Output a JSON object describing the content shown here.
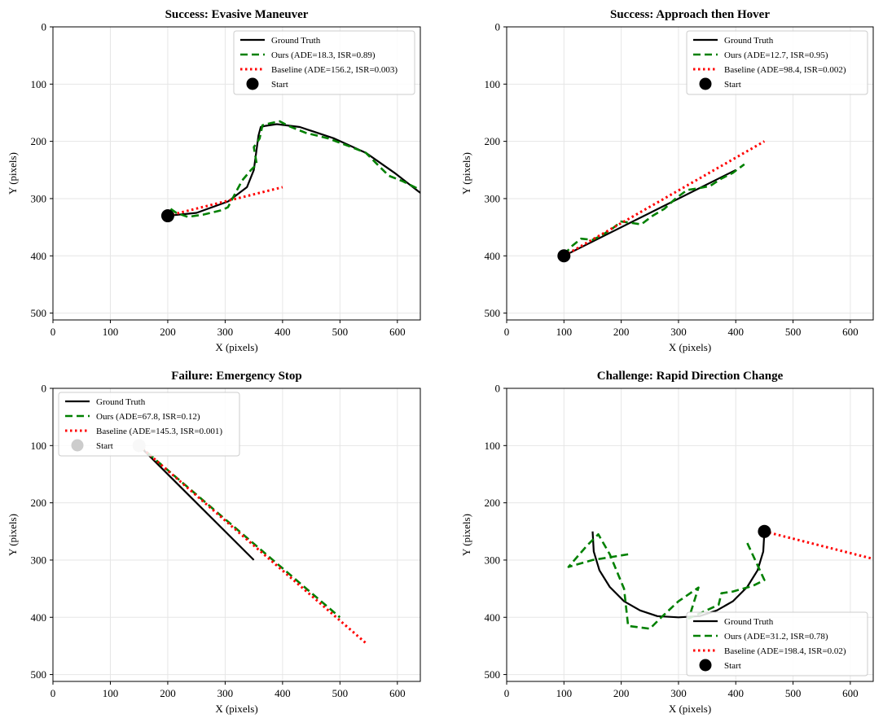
{
  "chart_data": [
    {
      "type": "line",
      "title": "Success: Evasive Maneuver",
      "xlabel": "X (pixels)",
      "ylabel": "Y (pixels)",
      "xlim": [
        0,
        640
      ],
      "ylim": [
        512,
        0
      ],
      "xticks": [
        0,
        100,
        200,
        300,
        400,
        500,
        600
      ],
      "yticks": [
        0,
        100,
        200,
        300,
        400,
        500
      ],
      "legend_position": "top-right",
      "series": [
        {
          "name": "Ground Truth",
          "style": "solid",
          "color": "#000000",
          "x": [
            200,
            250,
            305,
            338,
            350,
            358,
            362,
            370,
            390,
            430,
            490,
            545,
            595,
            640
          ],
          "y": [
            330,
            325,
            305,
            280,
            250,
            190,
            175,
            173,
            170,
            175,
            195,
            220,
            255,
            290
          ]
        },
        {
          "name": "Ours (ADE=18.3, ISR=0.89)",
          "style": "dashed",
          "color": "#008000",
          "x": [
            205,
            215,
            235,
            262,
            295,
            305,
            318,
            330,
            345,
            355,
            350,
            360,
            365,
            380,
            395,
            410,
            440,
            480,
            520,
            545,
            565,
            585,
            610,
            640
          ],
          "y": [
            318,
            325,
            332,
            328,
            320,
            315,
            290,
            268,
            250,
            240,
            210,
            195,
            172,
            168,
            165,
            173,
            185,
            195,
            210,
            220,
            240,
            260,
            270,
            285
          ]
        },
        {
          "name": "Baseline (ADE=156.2, ISR=0.003)",
          "style": "dotted",
          "color": "#ff0000",
          "x": [
            200,
            400
          ],
          "y": [
            330,
            280
          ]
        },
        {
          "name": "Start",
          "style": "marker",
          "color": "#000000",
          "x": [
            200
          ],
          "y": [
            330
          ]
        }
      ]
    },
    {
      "type": "line",
      "title": "Success: Approach then Hover",
      "xlabel": "X (pixels)",
      "ylabel": "Y (pixels)",
      "xlim": [
        0,
        640
      ],
      "ylim": [
        512,
        0
      ],
      "xticks": [
        0,
        100,
        200,
        300,
        400,
        500,
        600
      ],
      "yticks": [
        0,
        100,
        200,
        300,
        400,
        500
      ],
      "legend_position": "top-right",
      "series": [
        {
          "name": "Ground Truth",
          "style": "solid",
          "color": "#000000",
          "x": [
            100,
            400
          ],
          "y": [
            400,
            250
          ]
        },
        {
          "name": "Ours (ADE=12.7, ISR=0.95)",
          "style": "dashed",
          "color": "#008000",
          "x": [
            100,
            115,
            130,
            150,
            165,
            185,
            200,
            215,
            235,
            255,
            275,
            295,
            315,
            335,
            355,
            375,
            395,
            415
          ],
          "y": [
            398,
            382,
            370,
            372,
            365,
            352,
            340,
            342,
            345,
            330,
            318,
            300,
            285,
            282,
            278,
            265,
            255,
            240
          ]
        },
        {
          "name": "Baseline (ADE=98.4, ISR=0.002)",
          "style": "dotted",
          "color": "#ff0000",
          "x": [
            100,
            450
          ],
          "y": [
            400,
            200
          ]
        },
        {
          "name": "Start",
          "style": "marker",
          "color": "#000000",
          "x": [
            100
          ],
          "y": [
            400
          ]
        }
      ]
    },
    {
      "type": "line",
      "title": "Failure: Emergency Stop",
      "xlabel": "X (pixels)",
      "ylabel": "Y (pixels)",
      "xlim": [
        0,
        640
      ],
      "ylim": [
        512,
        0
      ],
      "xticks": [
        0,
        100,
        200,
        300,
        400,
        500,
        600
      ],
      "yticks": [
        0,
        100,
        200,
        300,
        400,
        500
      ],
      "legend_position": "top-left",
      "series": [
        {
          "name": "Ground Truth",
          "style": "solid",
          "color": "#000000",
          "x": [
            150,
            350
          ],
          "y": [
            100,
            300
          ]
        },
        {
          "name": "Ours (ADE=67.8, ISR=0.12)",
          "style": "dashed",
          "color": "#008000",
          "x": [
            150,
            500
          ],
          "y": [
            100,
            400
          ]
        },
        {
          "name": "Baseline (ADE=145.3, ISR=0.001)",
          "style": "dotted",
          "color": "#ff0000",
          "x": [
            150,
            545
          ],
          "y": [
            100,
            445
          ]
        },
        {
          "name": "Start",
          "style": "marker",
          "color": "#cccccc",
          "x": [
            150
          ],
          "y": [
            100
          ]
        }
      ]
    },
    {
      "type": "line",
      "title": "Challenge: Rapid Direction Change",
      "xlabel": "X (pixels)",
      "ylabel": "Y (pixels)",
      "xlim": [
        0,
        640
      ],
      "ylim": [
        512,
        0
      ],
      "xticks": [
        0,
        100,
        200,
        300,
        400,
        500,
        600
      ],
      "yticks": [
        0,
        100,
        200,
        300,
        400,
        500
      ],
      "legend_position": "bottom-right",
      "series": [
        {
          "name": "Ground Truth",
          "style": "solid",
          "color": "#000000",
          "x": [
            150,
            152,
            162,
            180,
            205,
            233,
            263,
            300,
            337,
            367,
            395,
            420,
            438,
            448,
            450
          ],
          "y": [
            250,
            285,
            318,
            347,
            372,
            388,
            398,
            400,
            398,
            388,
            372,
            347,
            318,
            285,
            250
          ]
        },
        {
          "name": "Ours (ADE=31.2, ISR=0.78)",
          "style": "dashed",
          "color": "#008000",
          "x": [
            212,
            150,
            108,
            140,
            160,
            180,
            205,
            212,
            250,
            270,
            300,
            335,
            318,
            370,
            375,
            395,
            430,
            450,
            420
          ],
          "y": [
            290,
            300,
            312,
            275,
            255,
            290,
            350,
            415,
            420,
            400,
            372,
            348,
            402,
            378,
            358,
            355,
            345,
            335,
            270
          ]
        },
        {
          "name": "Baseline (ADE=198.4, ISR=0.02)",
          "style": "dotted",
          "color": "#ff0000",
          "x": [
            450,
            640
          ],
          "y": [
            250,
            298
          ]
        },
        {
          "name": "Start",
          "style": "marker",
          "color": "#000000",
          "x": [
            450
          ],
          "y": [
            250
          ]
        }
      ]
    }
  ]
}
